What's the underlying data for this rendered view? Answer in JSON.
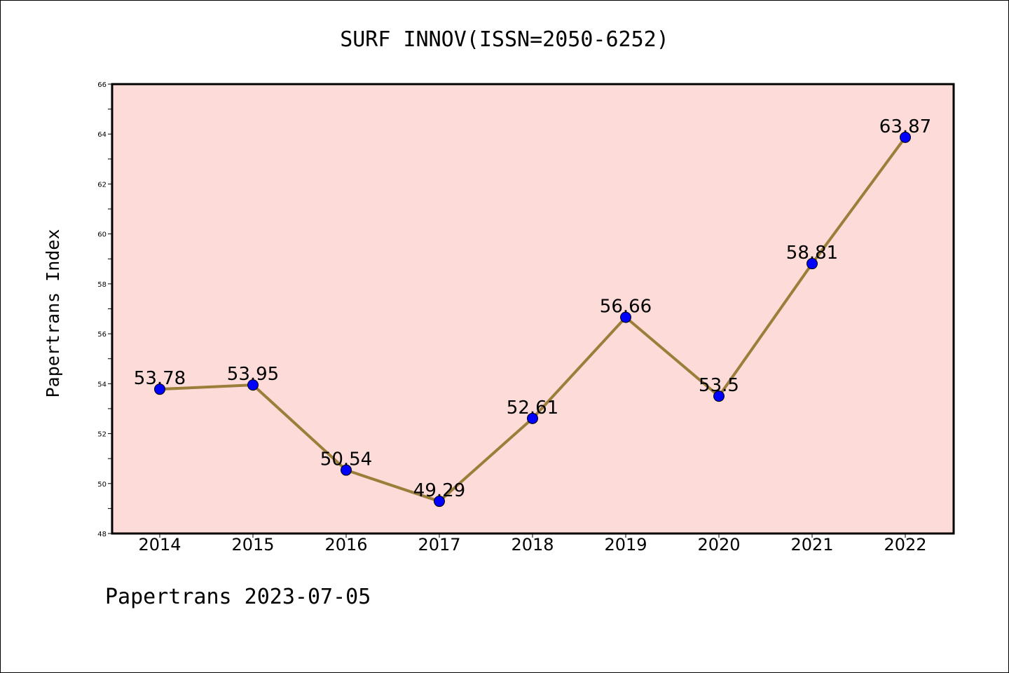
{
  "chart_data": {
    "type": "line",
    "title": "SURF INNOV(ISSN=2050-6252)",
    "xlabel": "",
    "ylabel": "Papertrans Index",
    "categories": [
      "2014",
      "2015",
      "2016",
      "2017",
      "2018",
      "2019",
      "2020",
      "2021",
      "2022"
    ],
    "values": [
      53.78,
      53.95,
      50.54,
      49.29,
      52.61,
      56.66,
      53.5,
      58.81,
      63.87
    ],
    "data_labels": [
      "53.78",
      "53.95",
      "50.54",
      "49.29",
      "52.61",
      "56.66",
      "53.5",
      "58.81",
      "63.87"
    ],
    "ylim": [
      48,
      66
    ],
    "yticks": [
      "48",
      "50",
      "52",
      "54",
      "56",
      "58",
      "60",
      "62",
      "64",
      "66"
    ],
    "grid": false,
    "legend": "none",
    "colors": {
      "plot_background": "#fddbd8",
      "line": "#9b7e3a",
      "marker": "#0000ff",
      "frame": "#000000"
    }
  },
  "footer": {
    "text": "Papertrans 2023-07-05"
  }
}
